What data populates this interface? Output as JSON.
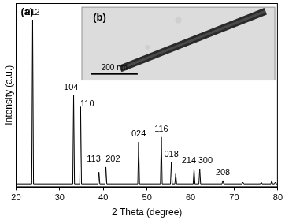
{
  "chart_data": {
    "type": "line",
    "panel_label": "(a)",
    "x_label": "2 Theta (degree)",
    "y_label": "Intensity (a.u.)",
    "color": "#000000",
    "x": [
      20,
      23.6,
      23.8,
      24.0,
      33.0,
      33.2,
      33.4,
      34.6,
      34.8,
      35.0,
      38.8,
      39.0,
      39.2,
      40.4,
      40.6,
      40.8,
      47.9,
      48.1,
      48.3,
      53.1,
      53.3,
      53.5,
      55.4,
      55.6,
      55.8,
      56.4,
      56.6,
      56.8,
      60.6,
      60.8,
      61.0,
      61.9,
      62.1,
      62.3,
      67.2,
      67.4,
      67.6,
      71.8,
      72.0,
      72.2,
      76.0,
      76.2,
      76.4,
      78.4,
      78.6,
      78.8,
      79.2,
      79.4,
      79.6,
      80
    ],
    "values": [
      2,
      2,
      100,
      2,
      2,
      55,
      2,
      2,
      48,
      2,
      2,
      9,
      2,
      2,
      12,
      2,
      2,
      27,
      2,
      2,
      30,
      2,
      2,
      15,
      2,
      2,
      8,
      2,
      2,
      11,
      2,
      2,
      11,
      2,
      2,
      4,
      2,
      2,
      3,
      2,
      2,
      3,
      2,
      2,
      4,
      2,
      2,
      3,
      2,
      2
    ],
    "xlim": [
      20,
      80
    ],
    "ylim": [
      0,
      110
    ],
    "xticks": [
      20,
      30,
      40,
      50,
      60,
      70,
      80
    ],
    "tick_labels": "x",
    "grid": false,
    "annotations": [
      {
        "text": "012",
        "x": 23.8,
        "y": 102
      },
      {
        "text": "104",
        "x": 32.6,
        "y": 57
      },
      {
        "text": "110",
        "x": 36.3,
        "y": 47
      },
      {
        "text": "113",
        "x": 37.8,
        "y": 14
      },
      {
        "text": "202",
        "x": 42.2,
        "y": 14
      },
      {
        "text": "024",
        "x": 48.1,
        "y": 29
      },
      {
        "text": "116",
        "x": 53.3,
        "y": 32
      },
      {
        "text": "018",
        "x": 55.6,
        "y": 17
      },
      {
        "text": "214",
        "x": 59.6,
        "y": 13
      },
      {
        "text": "300",
        "x": 63.4,
        "y": 13
      },
      {
        "text": "208",
        "x": 67.4,
        "y": 6
      }
    ],
    "inset": {
      "label": "(b)",
      "scale_bar": "200 nm"
    }
  }
}
